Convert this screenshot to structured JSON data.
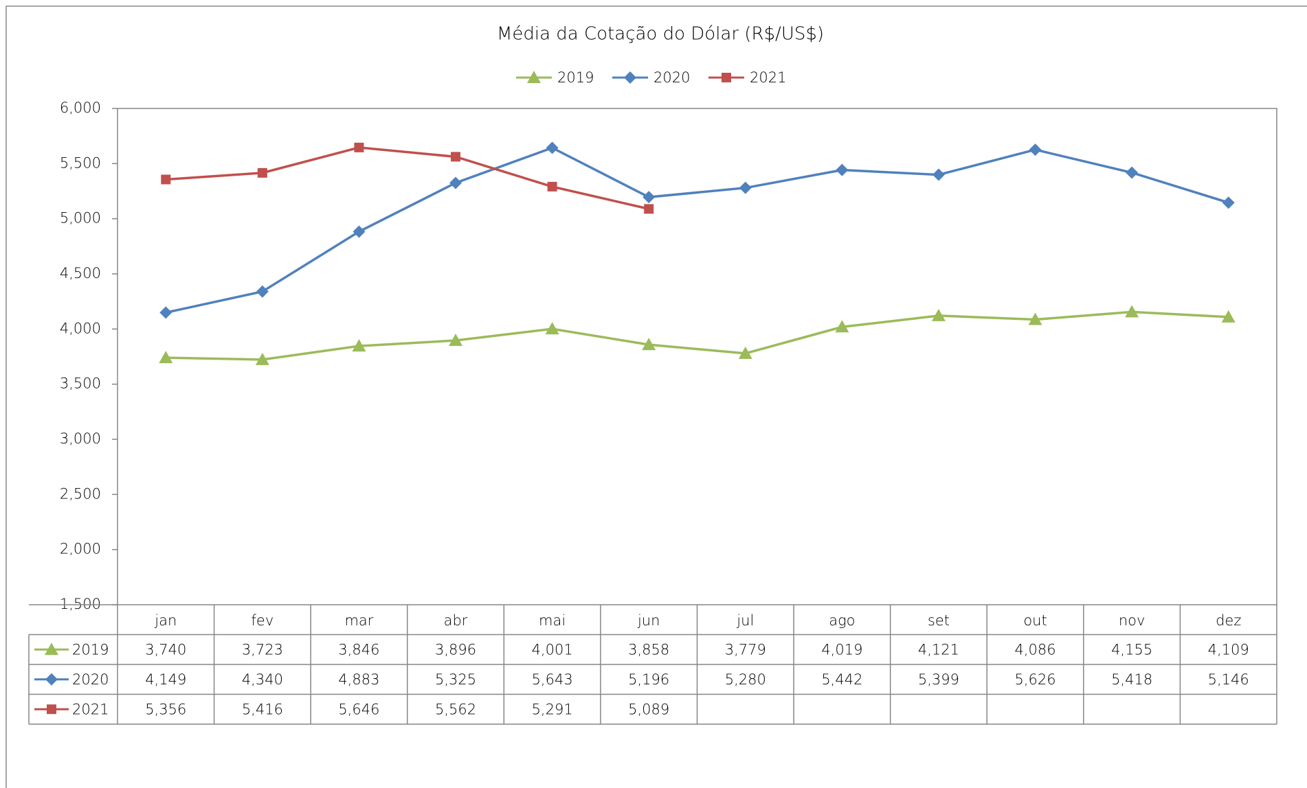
{
  "chart_data": {
    "type": "line",
    "title": "Média da Cotação do Dólar (R$/US$)",
    "categories": [
      "jan",
      "fev",
      "mar",
      "abr",
      "mai",
      "jun",
      "jul",
      "ago",
      "set",
      "out",
      "nov",
      "dez"
    ],
    "series": [
      {
        "name": "2019",
        "color": "#9bbb59",
        "marker": "triangle",
        "values": [
          3740,
          3723,
          3846,
          3896,
          4001,
          3858,
          3779,
          4019,
          4121,
          4086,
          4155,
          4109
        ],
        "value_labels": [
          "3,740",
          "3,723",
          "3,846",
          "3,896",
          "4,001",
          "3,858",
          "3,779",
          "4,019",
          "4,121",
          "4,086",
          "4,155",
          "4,109"
        ]
      },
      {
        "name": "2020",
        "color": "#4f81bd",
        "marker": "diamond",
        "values": [
          4149,
          4340,
          4883,
          5325,
          5643,
          5196,
          5280,
          5442,
          5399,
          5626,
          5418,
          5146
        ],
        "value_labels": [
          "4,149",
          "4,340",
          "4,883",
          "5,325",
          "5,643",
          "5,196",
          "5,280",
          "5,442",
          "5,399",
          "5,626",
          "5,418",
          "5,146"
        ]
      },
      {
        "name": "2021",
        "color": "#c0504d",
        "marker": "square",
        "values": [
          5356,
          5416,
          5646,
          5562,
          5291,
          5089,
          null,
          null,
          null,
          null,
          null,
          null
        ],
        "value_labels": [
          "5,356",
          "5,416",
          "5,646",
          "5,562",
          "5,291",
          "5,089",
          null,
          null,
          null,
          null,
          null,
          null
        ]
      }
    ],
    "ylim": [
      1500,
      6000
    ],
    "yticks": [
      {
        "value": 1500,
        "label": "1,500"
      },
      {
        "value": 2000,
        "label": "2,000"
      },
      {
        "value": 2500,
        "label": "2,500"
      },
      {
        "value": 3000,
        "label": "3,000"
      },
      {
        "value": 3500,
        "label": "3,500"
      },
      {
        "value": 4000,
        "label": "4,000"
      },
      {
        "value": 4500,
        "label": "4,500"
      },
      {
        "value": 5000,
        "label": "5,000"
      },
      {
        "value": 5500,
        "label": "5,500"
      },
      {
        "value": 6000,
        "label": "6,000"
      }
    ],
    "legend": "top",
    "data_table": true
  }
}
